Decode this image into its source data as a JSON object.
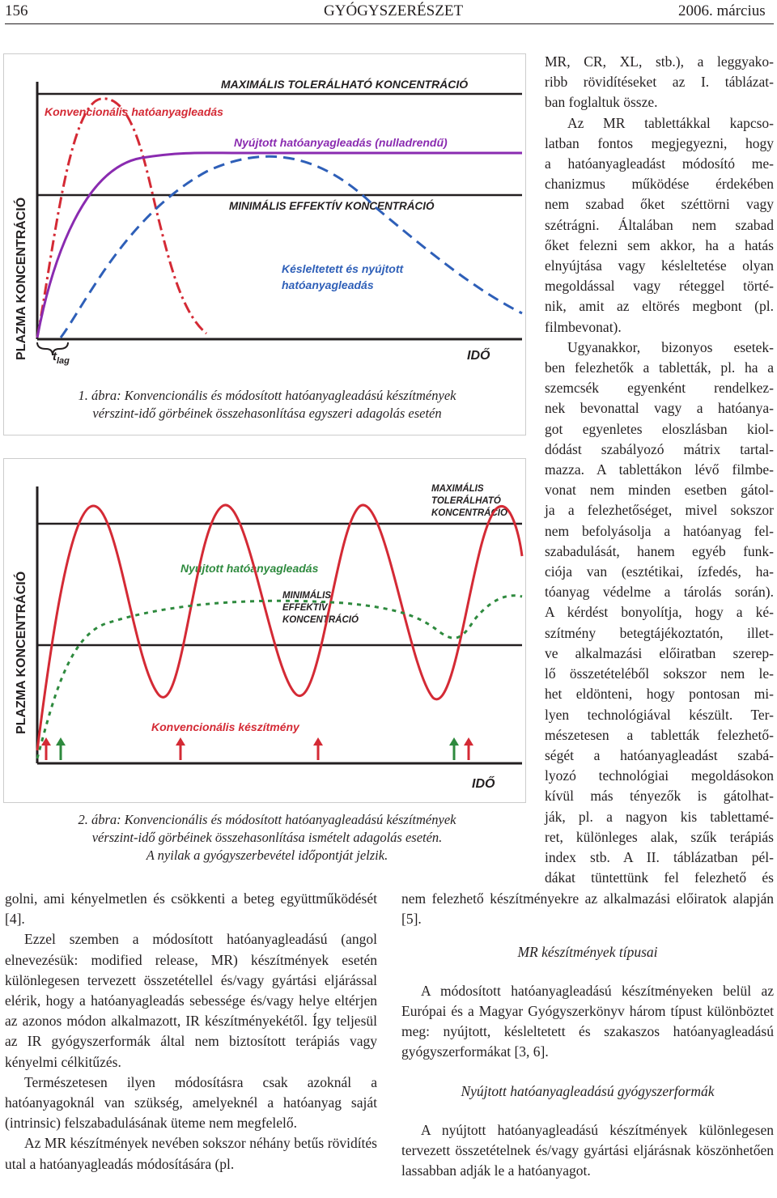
{
  "header": {
    "page": "156",
    "journal": "GYÓGYSZERÉSZET",
    "date": "2006. március"
  },
  "figure1": {
    "ylabel": "PLAZMA KONCENTRÁCIÓ",
    "xlabel": "IDŐ",
    "max_label": "MAXIMÁLIS TOLERÁLHATÓ KONCENTRÁCIÓ",
    "min_label": "MINIMÁLIS EFFEKTÍV KONCENTRÁCIÓ",
    "conv_label": "Konvencionális hatóanyagleadás",
    "ext_label": "Nyújtott hatóanyagleadás (nulladrendű)",
    "delayed_label_1": "Késleltetett és nyújtott",
    "delayed_label_2": "hatóanyagleadás",
    "tlag": "t",
    "tlag_sub": "lag",
    "caption_1": "1. ábra: Konvencionális és módosított hatóanyagleadású készítmények",
    "caption_2": "vérszint-idő görbéinek összehasonlítása egyszeri adagolás esetén",
    "colors": {
      "conv": "#d42a35",
      "ext": "#8a2bb0",
      "delayed": "#2e5fb8",
      "lines": "#231f20"
    }
  },
  "figure2": {
    "ylabel": "PLAZMA KONCENTRÁCIÓ",
    "xlabel": "IDŐ",
    "max_1": "MAXIMÁLIS",
    "max_2": "TOLERÁLHATÓ",
    "max_3": "KONCENTRÁCIÓ",
    "min_1": "MINIMÁLIS",
    "min_2": "EFFEKTÍV",
    "min_3": "KONCENTRÁCIÓ",
    "ext_label": "Nyújtott hatóanyagleadás",
    "conv_label": "Konvencionális készítmény",
    "caption_1": "2. ábra: Konvencionális és módosított hatóanyagleadású készítmények",
    "caption_2": "vérszint-idő görbéinek összehasonlítása ismételt adagolás esetén.",
    "caption_3": "A nyilak a gyógyszerbevétel időpontját jelzik.",
    "colors": {
      "conv": "#d42a35",
      "ext": "#2e8a3e"
    }
  },
  "right_col": [
    "MR, CR, XL, stb.), a leggyako-",
    "ribb rövidítéseket az I. táblázat-",
    "ban foglaltuk össze.",
    "Az MR tablettákkal kapcso-",
    "latban fontos megjegyezni, hogy",
    "a hatóanyagleadást módosító me-",
    "chanizmus működése érdekében",
    "nem szabad őket széttörni vagy",
    "szétrágni. Általában nem szabad",
    "őket felezni sem akkor, ha a hatás",
    "elnyújtása vagy késleltetése olyan",
    "megoldással vagy réteggel törté-",
    "nik, amit az eltörés megbont (pl.",
    "filmbevonat).",
    "Ugyanakkor, bizonyos esetek-",
    "ben felezhetők a tabletták, pl. ha a",
    "szemcsék egyenként rendelkez-",
    "nek bevonattal vagy a hatóanya-",
    "got egyenletes eloszlásban kiol-",
    "dódást szabályozó mátrix tartal-",
    "mazza. A tablettákon lévő filmbe-",
    "vonat nem minden esetben gátol-",
    "ja a felezhetőséget, mivel sokszor",
    "nem befolyásolja a hatóanyag fel-",
    "szabadulását, hanem egyéb funk-",
    "ciója van (esztétikai, ízfedés, ha-",
    "tóanyag védelme a tárolás során).",
    "A kérdést bonyolítja, hogy a ké-",
    "szítmény betegtájékoztatón, illet-",
    "ve alkalmazási előiratban szerep-",
    "lő összetételéből sokszor nem le-",
    "het eldönteni, hogy pontosan mi-",
    "lyen technológiával készült. Ter-",
    "mészetesen a tabletták felezhető-",
    "ségét a hatóanyagleadást szabá-",
    "lyozó technológiai megoldásokon",
    "kívül más tényezők is gátolhat-",
    "ják, pl. a nagyon kis tablettamé-",
    "ret, különleges alak, szűk terápiás",
    "index stb. A II. táblázatban pél-",
    "dákat tüntettünk fel felezhető és"
  ],
  "right_bottom": {
    "p1": "nem felezhető készítményekre az alkalmazási előiratok alapján [5].",
    "h1": "MR készítmények típusai",
    "p2": "A módosított hatóanyagleadású készítményeken belül az Európai és a Magyar Gyógyszerkönyv három típust különböztet meg: nyújtott, késleltetett és szakaszos hatóanyagleadású gyógyszerformákat [3, 6].",
    "h2": "Nyújtott hatóanyagleadású gyógyszerformák",
    "p3": "A nyújtott hatóanyagleadású készítmények különlegesen tervezett összetételnek és/vagy gyártási eljárásnak köszönhetően lassabban adják le a hatóanyagot."
  },
  "left_bottom": {
    "p1": "golni, ami kényelmetlen és csökkenti a beteg együttműködését [4].",
    "p2": "Ezzel szemben a módosított hatóanyagleadású (angol elnevezésük: modified release, MR) készítmények esetén különlegesen tervezett összetétellel és/vagy gyártási eljárással elérik, hogy a hatóanyagleadás sebessége és/vagy helye eltérjen az azonos módon alkalmazott, IR készítményekétől. Így teljesül az IR gyógyszerformák által nem biztosított terápiás vagy kényelmi célkitűzés.",
    "p3": "Természetesen ilyen módosításra csak azoknál a hatóanyagoknál van szükség, amelyeknél a hatóanyag saját (intrinsic) felszabadulásának üteme nem megfelelő.",
    "p4": "Az MR készítmények nevében sokszor néhány betűs rövidítés utal a hatóanyagleadás módosítására (pl."
  }
}
